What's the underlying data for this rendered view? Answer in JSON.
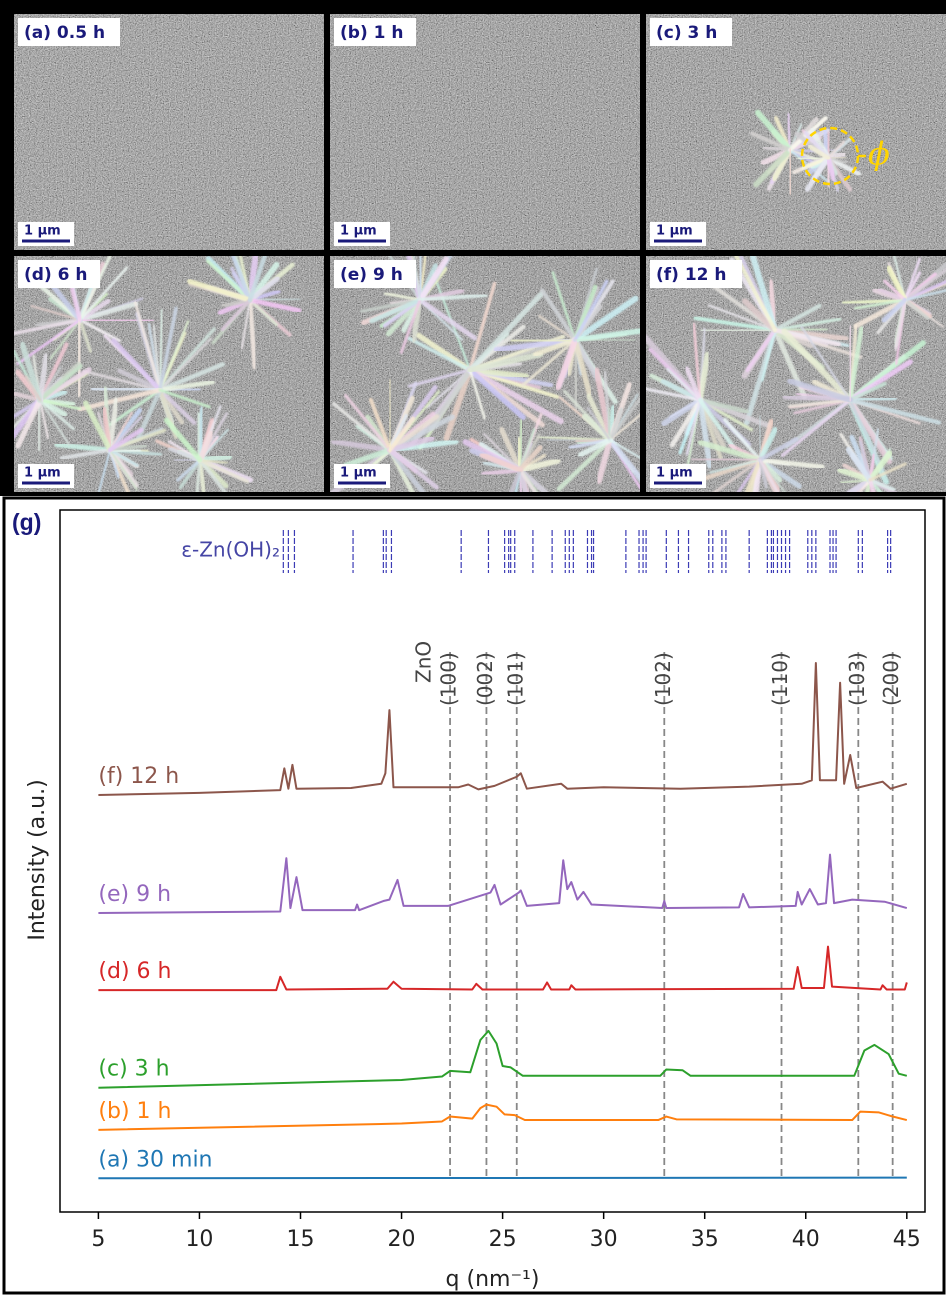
{
  "panels": [
    {
      "label": "(a) 0.5 h",
      "scale_bar": "1 μm"
    },
    {
      "label": "(b) 1 h",
      "scale_bar": "1 μm"
    },
    {
      "label": "(c) 3 h",
      "scale_bar": "1 μm",
      "annotation": "ϕ"
    },
    {
      "label": "(d) 6 h",
      "scale_bar": "1 μm"
    },
    {
      "label": "(e) 9 h",
      "scale_bar": "1 μm"
    },
    {
      "label": "(f) 12 h",
      "scale_bar": "1 μm"
    }
  ],
  "chart_data": {
    "type": "line",
    "panel_label": "(g)",
    "x_label": "q (nm⁻¹)",
    "y_label": "Intensity (a.u.)",
    "xlim": [
      3.1,
      45.9
    ],
    "xticks": [
      5,
      10,
      15,
      20,
      25,
      30,
      35,
      40,
      45
    ],
    "ylim": [
      0,
      100
    ],
    "series": [
      {
        "name": "(a) 30 min",
        "color": "#1f77b4",
        "x": [
          5,
          45
        ],
        "values": [
          4.8,
          4.9
        ]
      },
      {
        "name": "(b) 1 h",
        "color": "#ff7f0e",
        "x": [
          5,
          20,
          22,
          22.4,
          23.5,
          23.9,
          24.2,
          24.7,
          25.1,
          25.6,
          26.1,
          32.7,
          33.1,
          33.6,
          42.3,
          42.7,
          43.6,
          44.3,
          45
        ],
        "values": [
          11.7,
          12.6,
          12.9,
          13.6,
          13.3,
          14.8,
          15.3,
          15.0,
          13.9,
          13.8,
          13.1,
          13.1,
          13.6,
          13.2,
          13.1,
          14.3,
          14.2,
          13.6,
          13.1
        ]
      },
      {
        "name": "(c) 3 h",
        "color": "#2ca02c",
        "x": [
          5,
          20,
          22,
          22.4,
          23.4,
          23.9,
          24.3,
          24.7,
          25.0,
          25.4,
          26.0,
          32.8,
          33.1,
          33.9,
          34.3,
          42.4,
          42.9,
          43.4,
          44.1,
          44.6,
          45
        ],
        "values": [
          17.7,
          18.8,
          19.3,
          20.1,
          19.9,
          24.5,
          25.8,
          24.0,
          20.8,
          20.6,
          19.4,
          19.4,
          20.3,
          20.2,
          19.4,
          19.4,
          23.0,
          23.8,
          22.5,
          19.7,
          19.4
        ]
      },
      {
        "name": "(d) 6 h",
        "color": "#d62728",
        "x": [
          5,
          13.8,
          14,
          14.3,
          19.3,
          19.6,
          20,
          23.5,
          23.7,
          24,
          27,
          27.2,
          27.4,
          28.3,
          28.4,
          28.6,
          39.4,
          39.6,
          39.8,
          40.9,
          41.1,
          41.3,
          43.7,
          43.8,
          44,
          44.9,
          45
        ],
        "values": [
          31.6,
          31.6,
          33.5,
          31.7,
          31.8,
          32.8,
          31.8,
          31.7,
          32.5,
          31.7,
          31.7,
          32.7,
          31.7,
          31.7,
          32.3,
          31.7,
          31.8,
          34.9,
          31.9,
          31.9,
          37.8,
          32.1,
          31.7,
          32.3,
          31.7,
          31.7,
          32.7
        ]
      },
      {
        "name": "(e) 9 h",
        "color": "#9467bd",
        "x": [
          5,
          14.0,
          14.3,
          14.5,
          14.8,
          15.1,
          17.7,
          17.8,
          17.9,
          19.1,
          19.4,
          19.8,
          20.1,
          22.3,
          24.4,
          24.6,
          24.9,
          25.8,
          25.9,
          26.2,
          27.8,
          28.0,
          28.2,
          28.4,
          28.7,
          29.0,
          29.4,
          32.9,
          33.0,
          33.1,
          36.7,
          36.9,
          37.2,
          39.5,
          39.6,
          39.8,
          40.2,
          40.6,
          41.0,
          41.2,
          41.4,
          42.3,
          43.9,
          45
        ],
        "values": [
          42.6,
          42.8,
          50.4,
          43.3,
          47.7,
          43.0,
          43.0,
          43.8,
          43.0,
          44.3,
          44.5,
          47.3,
          43.6,
          43.6,
          45.5,
          46.6,
          43.8,
          45.5,
          45.8,
          43.6,
          44.0,
          50.1,
          46.0,
          47.0,
          44.5,
          45.6,
          43.8,
          43.3,
          44.3,
          43.3,
          43.4,
          45.3,
          43.4,
          43.6,
          45.6,
          43.8,
          46.0,
          43.8,
          44.0,
          50.9,
          44.0,
          44.5,
          44.2,
          43.3
        ]
      },
      {
        "name": "(f) 12 h",
        "color": "#8c564b",
        "x": [
          5,
          10,
          14.0,
          14.2,
          14.4,
          14.6,
          14.8,
          17.5,
          19.0,
          19.2,
          19.4,
          19.6,
          22.8,
          23.3,
          23.8,
          24.6,
          25.7,
          25.9,
          26.2,
          27.9,
          28.2,
          30.0,
          33.8,
          37.2,
          39.8,
          40.3,
          40.5,
          40.7,
          41.5,
          41.7,
          41.9,
          42.2,
          42.5,
          43.8,
          44.2,
          45
        ],
        "values": [
          59.4,
          59.7,
          60.1,
          63.2,
          60.3,
          63.7,
          60.3,
          60.4,
          61.0,
          62.5,
          71.5,
          60.5,
          60.5,
          60.9,
          60.2,
          60.7,
          62.0,
          62.5,
          60.3,
          61.0,
          60.3,
          60.5,
          60.3,
          60.6,
          61.0,
          61.5,
          78.2,
          61.5,
          61.5,
          75.4,
          61.0,
          65.1,
          60.4,
          61.3,
          60.3,
          61.0
        ]
      }
    ],
    "reference_name": "ZnO",
    "reference_lines": [
      {
        "value": 22.4,
        "label": "(100)"
      },
      {
        "value": 24.2,
        "label": "(002)"
      },
      {
        "value": 25.7,
        "label": "(101)"
      },
      {
        "value": 33.0,
        "label": "(102)"
      },
      {
        "value": 38.8,
        "label": "(110)"
      },
      {
        "value": 42.6,
        "label": "(103)"
      },
      {
        "value": 44.3,
        "label": "(200)"
      }
    ],
    "phase_name": "ε-Zn(OH)₂",
    "phase_ticks": [
      14.15,
      14.4,
      14.7,
      17.6,
      19.1,
      19.24,
      19.5,
      22.95,
      24.3,
      25.1,
      25.3,
      25.4,
      25.6,
      26.5,
      27.45,
      28.1,
      28.3,
      28.5,
      29.2,
      29.4,
      29.5,
      31.1,
      31.75,
      31.95,
      32.1,
      33.1,
      33.7,
      34.2,
      35.2,
      35.4,
      35.85,
      36.05,
      37.2,
      38.1,
      38.3,
      38.4,
      38.6,
      38.8,
      39.0,
      39.2,
      40.1,
      40.3,
      40.5,
      41.2,
      41.35,
      41.5,
      42.6,
      42.8,
      44.05,
      44.2
    ]
  }
}
